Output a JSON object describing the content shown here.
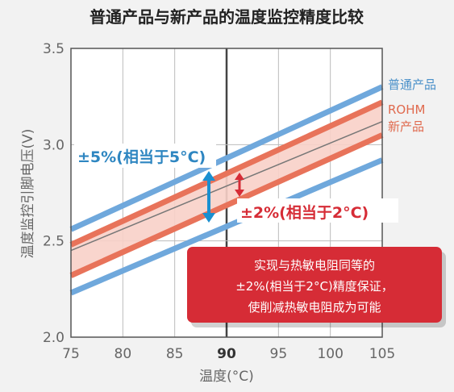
{
  "chart_data": {
    "type": "line",
    "title": "普通产品与新产品的温度监控精度比较",
    "xlabel": "温度(°C)",
    "ylabel": "温度监控引脚电压(V)",
    "xlim": [
      75,
      105
    ],
    "ylim": [
      2.0,
      3.5
    ],
    "xticks": [
      "75",
      "80",
      "85",
      "90",
      "95",
      "100",
      "105"
    ],
    "yticks": [
      "2.0",
      "2.5",
      "3.0",
      "3.5"
    ],
    "grid": true,
    "highlight_x": 90,
    "center_line": {
      "x": [
        75,
        105
      ],
      "y": [
        2.45,
        3.12
      ]
    },
    "series": [
      {
        "name": "普通产品",
        "color": "#6fa8dc",
        "band": "outer",
        "x": [
          75,
          105
        ],
        "upper": [
          2.56,
          3.3
        ],
        "lower": [
          2.23,
          2.92
        ]
      },
      {
        "name": "ROHM 新产品",
        "color": "#e8735a",
        "band": "inner",
        "x": [
          75,
          105
        ],
        "upper": [
          2.48,
          3.22
        ],
        "lower": [
          2.32,
          3.05
        ]
      }
    ],
    "annotations": {
      "pm5": "±5%(相当于5°C)",
      "pm2": "±2%(相当于2°C)",
      "legend_normal": "普通产品",
      "legend_rohm_1": "ROHM",
      "legend_rohm_2": "新产品",
      "callout_lines": [
        "实现与热敏电阻同等的",
        "±2%(相当于2°C)精度保证，",
        "使削减热敏电阻成为可能"
      ]
    },
    "colors": {
      "blue_text": "#2e86c1",
      "red_text": "#d9534f",
      "callout_bg": "#d62c36",
      "band_fill": "#f8d0c8",
      "center": "#777777"
    }
  }
}
